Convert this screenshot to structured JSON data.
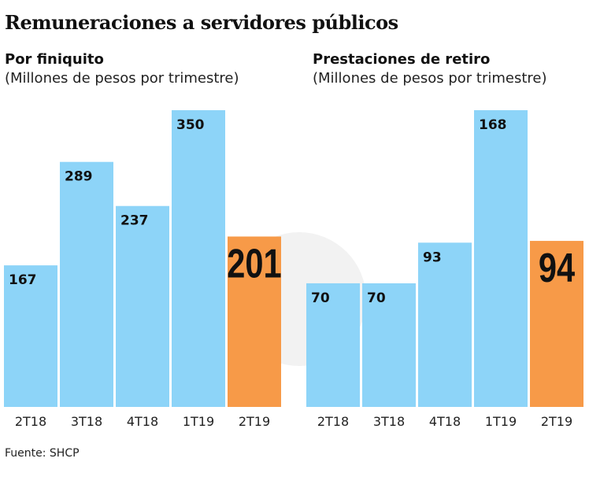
{
  "title": "Remuneraciones a servidores públicos",
  "source": "Fuente: SHCP",
  "colors": {
    "bar": "#8dd4f8",
    "highlight": "#f79a48"
  },
  "chart_data": [
    {
      "type": "bar",
      "title": "Por finiquito",
      "subtitle": "(Millones de pesos por trimestre)",
      "categories": [
        "2T18",
        "3T18",
        "4T18",
        "1T19",
        "2T19"
      ],
      "values": [
        167,
        289,
        237,
        350,
        201
      ],
      "highlight_index": 4,
      "ylim": [
        0,
        350
      ],
      "grid": false
    },
    {
      "type": "bar",
      "title": "Prestaciones de retiro",
      "subtitle": "(Millones de pesos por trimestre)",
      "categories": [
        "2T18",
        "3T18",
        "4T18",
        "1T19",
        "2T19"
      ],
      "values": [
        70,
        70,
        93,
        168,
        94
      ],
      "highlight_index": 4,
      "ylim": [
        0,
        168
      ],
      "grid": false
    }
  ]
}
